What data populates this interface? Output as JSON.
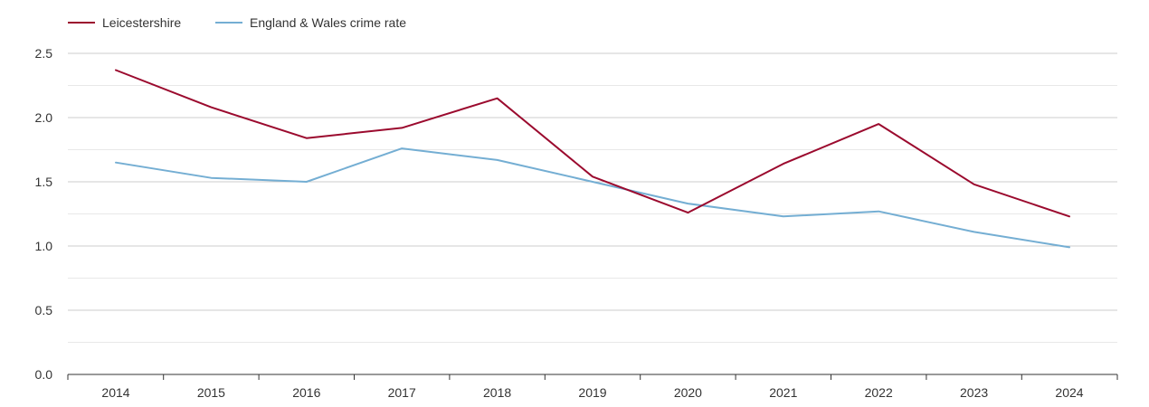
{
  "chart_data": {
    "type": "line",
    "title": "",
    "xlabel": "",
    "ylabel": "",
    "categories": [
      "2014",
      "2015",
      "2016",
      "2017",
      "2018",
      "2019",
      "2020",
      "2021",
      "2022",
      "2023",
      "2024"
    ],
    "ylim": [
      0,
      2.5
    ],
    "y_ticks": [
      "0.0",
      "0.5",
      "1.0",
      "1.5",
      "2.0",
      "2.5"
    ],
    "grid": true,
    "legend_position": "top-left",
    "series": [
      {
        "name": "Leicestershire",
        "color": "#9b0a2e",
        "values": [
          2.37,
          2.08,
          1.84,
          1.92,
          2.15,
          1.54,
          1.26,
          1.64,
          1.95,
          1.48,
          1.23
        ]
      },
      {
        "name": "England & Wales crime rate",
        "color": "#74aed3",
        "values": [
          1.65,
          1.53,
          1.5,
          1.76,
          1.67,
          1.5,
          1.33,
          1.23,
          1.27,
          1.11,
          0.99
        ]
      }
    ]
  }
}
